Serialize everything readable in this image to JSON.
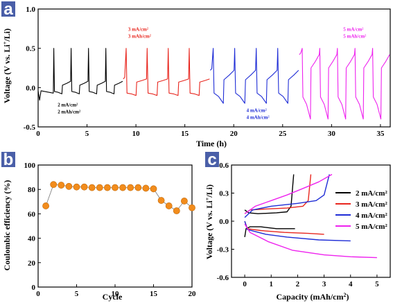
{
  "chart_data": [
    {
      "panel": "a",
      "type": "line",
      "xlabel": "Time (h)",
      "ylabel": "Voltage (V vs. Li⁺Li)",
      "ylabel_parts": [
        "Voltage (V vs. Li",
        "+",
        "/Li)"
      ],
      "xlim": [
        0,
        36
      ],
      "ylim": [
        -0.5,
        1.0
      ],
      "xticks": [
        0,
        5,
        10,
        15,
        20,
        25,
        30,
        35
      ],
      "yticks": [
        -0.5,
        0.0,
        0.5,
        1.0
      ],
      "ytick_labels": [
        "-0.5",
        "0.0",
        "0.5",
        "1.0"
      ],
      "colors": [
        "#000000",
        "#e8261e",
        "#1f2dd6",
        "#ee22ee"
      ],
      "annotations": [
        {
          "lines": [
            "2 mA/cm²",
            "2 mAh/cm²"
          ],
          "x": 2.0,
          "y": -0.24,
          "color": "#000000"
        },
        {
          "lines": [
            "3 mA/cm²",
            "3 mAh/cm²"
          ],
          "x": 9.2,
          "y": 0.72,
          "color": "#e8261e"
        },
        {
          "lines": [
            "4 mA/cm²",
            "4 mAh/cm²"
          ],
          "x": 21.3,
          "y": -0.31,
          "color": "#1f2dd6"
        },
        {
          "lines": [
            "5 mA/cm²",
            "5 mAh/cm²"
          ],
          "x": 31.2,
          "y": 0.72,
          "color": "#ee22ee"
        }
      ],
      "segments": [
        {
          "name": "2 mA/cm²",
          "color": "#000000",
          "t_start": 0.0,
          "t_end": 8.7,
          "cycles": 4,
          "first_delay": 1.6,
          "spike": 0.5,
          "first_dip": -0.16,
          "first_plateau": -0.04,
          "plateau_start": -0.05,
          "plateau_end": -0.08,
          "charge_start": 0.03,
          "charge_end": 0.08
        },
        {
          "name": "3 mA/cm²",
          "color": "#e8261e",
          "t_start": 8.7,
          "t_end": 17.6,
          "cycles": 4,
          "first_delay": 0.3,
          "spike": 0.5,
          "plateau_start": -0.07,
          "plateau_end": -0.1,
          "charge_start": 0.07,
          "charge_end": 0.11
        },
        {
          "name": "4 mA/cm²",
          "color": "#1f2dd6",
          "t_start": 17.6,
          "t_end": 26.7,
          "cycles": 4,
          "first_delay": 0.3,
          "spike": 0.5,
          "plateau_start": -0.07,
          "plateau_end": -0.2,
          "charge_start": 0.1,
          "charge_end": 0.22
        },
        {
          "name": "5 mA/cm²",
          "color": "#ee22ee",
          "t_start": 26.7,
          "t_end": 36.0,
          "cycles": 5,
          "first_delay": 0.3,
          "spike": 0.5,
          "plateau_start": -0.12,
          "plateau_end": -0.4,
          "charge_start": 0.25,
          "charge_end": 0.42
        }
      ]
    },
    {
      "panel": "b",
      "type": "scatter",
      "xlabel": "Cycle",
      "ylabel": "Coulombic efficiency (%)",
      "xlim": [
        0,
        20
      ],
      "ylim": [
        0,
        100
      ],
      "xticks": [
        0,
        5,
        10,
        15,
        20
      ],
      "yticks": [
        0,
        20,
        40,
        60,
        80,
        100
      ],
      "color": "#f28c1c",
      "x": [
        1,
        2,
        3,
        4,
        5,
        6,
        7,
        8,
        9,
        10,
        11,
        12,
        13,
        14,
        15,
        16,
        17,
        18,
        19,
        20
      ],
      "y": [
        66.5,
        84.0,
        83.5,
        82.5,
        82.0,
        82.0,
        81.5,
        81.5,
        81.5,
        81.5,
        81.5,
        81.5,
        81.5,
        81.0,
        80.5,
        71.0,
        66.5,
        62.5,
        70.5,
        65.0
      ]
    },
    {
      "panel": "c",
      "type": "line",
      "xlabel_parts": [
        "Capacity (mAh/cm",
        "2",
        ")"
      ],
      "ylabel_parts": [
        "Voltage (V vs. Li",
        "+",
        "/Li)"
      ],
      "xlim": [
        -0.5,
        5.5
      ],
      "ylim": [
        -0.6,
        0.6
      ],
      "xticks": [
        0,
        1,
        2,
        3,
        4,
        5
      ],
      "yticks": [
        -0.6,
        -0.3,
        0.0,
        0.3,
        0.6
      ],
      "ytick_labels": [
        "-0.6",
        "-0.3",
        "0.0",
        "0.3",
        "0.6"
      ],
      "legend_position": "right",
      "series": [
        {
          "name": "2 mA/cm²",
          "color": "#000000",
          "discharge": [
            [
              0,
              -0.17
            ],
            [
              0.05,
              -0.08
            ],
            [
              0.2,
              -0.06
            ],
            [
              0.6,
              -0.06
            ],
            [
              1.2,
              -0.08
            ],
            [
              1.9,
              -0.08
            ]
          ],
          "charge": [
            [
              0,
              0.12
            ],
            [
              0.15,
              0.09
            ],
            [
              0.5,
              0.08
            ],
            [
              1.2,
              0.09
            ],
            [
              1.6,
              0.1
            ],
            [
              1.75,
              0.16
            ],
            [
              1.85,
              0.5
            ]
          ]
        },
        {
          "name": "3 mA/cm²",
          "color": "#e8261e",
          "discharge": [
            [
              0,
              0.0
            ],
            [
              0.1,
              -0.08
            ],
            [
              0.6,
              -0.1
            ],
            [
              1.5,
              -0.12
            ],
            [
              2.4,
              -0.13
            ],
            [
              3.0,
              -0.14
            ]
          ],
          "charge": [
            [
              0,
              0.08
            ],
            [
              0.2,
              0.12
            ],
            [
              0.8,
              0.13
            ],
            [
              1.6,
              0.14
            ],
            [
              2.2,
              0.16
            ],
            [
              2.4,
              0.22
            ],
            [
              2.5,
              0.5
            ]
          ]
        },
        {
          "name": "4 mA/cm²",
          "color": "#1f2dd6",
          "discharge": [
            [
              0,
              0.0
            ],
            [
              0.1,
              -0.09
            ],
            [
              0.8,
              -0.14
            ],
            [
              1.6,
              -0.17
            ],
            [
              2.8,
              -0.2
            ],
            [
              4.0,
              -0.21
            ]
          ],
          "charge": [
            [
              0,
              0.04
            ],
            [
              0.3,
              0.12
            ],
            [
              1.0,
              0.16
            ],
            [
              2.0,
              0.19
            ],
            [
              2.7,
              0.22
            ],
            [
              3.0,
              0.28
            ],
            [
              3.2,
              0.5
            ]
          ]
        },
        {
          "name": "5 mA/cm²",
          "color": "#ee22ee",
          "discharge": [
            [
              0,
              -0.03
            ],
            [
              0.2,
              -0.12
            ],
            [
              0.9,
              -0.22
            ],
            [
              1.8,
              -0.31
            ],
            [
              3.0,
              -0.36
            ],
            [
              4.0,
              -0.38
            ],
            [
              5.0,
              -0.39
            ]
          ],
          "charge": [
            [
              0,
              0.08
            ],
            [
              0.4,
              0.16
            ],
            [
              1.0,
              0.22
            ],
            [
              1.6,
              0.28
            ],
            [
              2.2,
              0.35
            ],
            [
              2.8,
              0.42
            ],
            [
              3.3,
              0.5
            ]
          ]
        }
      ]
    }
  ]
}
